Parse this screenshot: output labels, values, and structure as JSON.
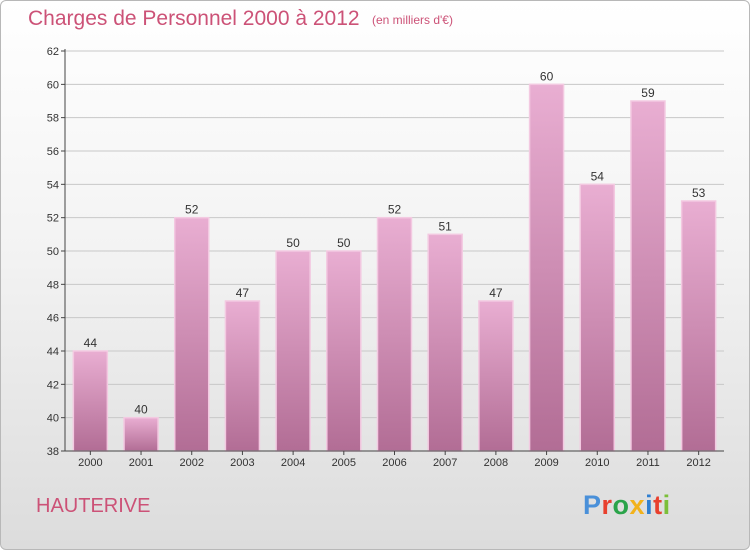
{
  "title": "Charges de Personnel 2000 à 2012",
  "subtitle": "(en milliers d'€)",
  "commune": "HAUTERIVE",
  "logo_text": "Proxiti",
  "colors": {
    "title": "#cc5277",
    "bar_top": "#e9aed2",
    "bar_bottom": "#b26d95",
    "bar_edge": "#f3c9e1",
    "axis": "#444444",
    "grid": "#c8c8c8",
    "logo": [
      "#4a90d9",
      "#e8402e",
      "#2aa44a",
      "#f2b21b",
      "#2f7fd1",
      "#e8402e",
      "#7cbf3a"
    ]
  },
  "chart_data": {
    "type": "bar",
    "categories": [
      "2000",
      "2001",
      "2002",
      "2003",
      "2004",
      "2005",
      "2006",
      "2007",
      "2008",
      "2009",
      "2010",
      "2011",
      "2012"
    ],
    "values": [
      44,
      40,
      52,
      47,
      50,
      50,
      52,
      51,
      47,
      60,
      54,
      59,
      53
    ],
    "data_labels": [
      "44",
      "40",
      "52",
      "47",
      "50",
      "50",
      "52",
      "51",
      "47",
      "60",
      "54",
      "59",
      "53"
    ],
    "yticks": [
      "38",
      "40",
      "42",
      "44",
      "46",
      "48",
      "50",
      "52",
      "54",
      "56",
      "58",
      "60",
      "62"
    ],
    "ylim": [
      38,
      62
    ],
    "grid": true
  }
}
